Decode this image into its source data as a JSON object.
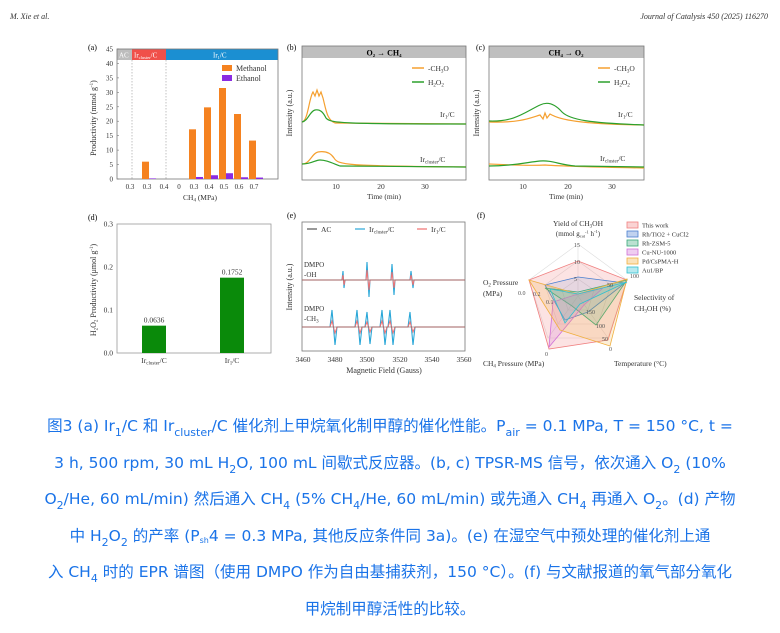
{
  "header": {
    "authors": "M. Xie et al.",
    "journal": "Journal of Catalysis 450 (2025) 116270"
  },
  "panels": {
    "a": {
      "label": "(a)",
      "group_ac": "AC",
      "group_cluster": "Ir",
      "group_cluster_sub": "cluster",
      "group_cluster_tail": "/C",
      "group_single": "Ir",
      "group_single_sub": "1",
      "group_single_tail": "/C"
    },
    "b": {
      "label": "(b)",
      "title": "O₂ → CH₄"
    },
    "c": {
      "label": "(c)",
      "title": "CH₄ → O₂"
    },
    "d": {
      "label": "(d)"
    },
    "e": {
      "label": "(e)"
    },
    "f": {
      "label": "(f)"
    }
  },
  "chart_data": [
    {
      "id": "a",
      "type": "bar",
      "title": "",
      "xlabel": "CH4 (MPa)",
      "ylabel": "Productivity (mmol g-1)",
      "ylim": [
        0,
        45
      ],
      "yticks": [
        0,
        5,
        10,
        15,
        20,
        25,
        30,
        35,
        40,
        45
      ],
      "groups": [
        "AC",
        "Ir_cluster/C",
        "Ir1/C"
      ],
      "categories": [
        "0.3",
        "0.3",
        "0.4",
        "0",
        "0.3",
        "0.4",
        "0.5",
        "0.6",
        "0.7"
      ],
      "series": [
        {
          "name": "Methanol",
          "color": "#f58220",
          "values": [
            0,
            6.0,
            0,
            0,
            17.2,
            24.8,
            31.5,
            22.5,
            13.3
          ]
        },
        {
          "name": "Ethanol",
          "color": "#8a2be2",
          "values": [
            0,
            0.2,
            0,
            0,
            0.7,
            1.3,
            2.0,
            0.6,
            0.5
          ]
        }
      ],
      "legend_position": "upper right"
    },
    {
      "id": "b",
      "type": "line",
      "title": "O2 → CH4",
      "xlabel": "Time (min)",
      "ylabel": "Intensity (a.u.)",
      "xticks": [
        10,
        20,
        30
      ],
      "xlim": [
        3,
        35
      ],
      "series": [
        {
          "name": "-CH3O",
          "color": "#f5a030"
        },
        {
          "name": "H2O2",
          "color": "#2ca02c"
        }
      ],
      "annotations": [
        "Ir1/C",
        "Ir_cluster/C"
      ]
    },
    {
      "id": "c",
      "type": "line",
      "title": "CH4 → O2",
      "xlabel": "Time (min)",
      "ylabel": "Intensity (a.u.)",
      "xticks": [
        10,
        20,
        30
      ],
      "xlim": [
        3,
        35
      ],
      "series": [
        {
          "name": "-CH3O",
          "color": "#f5a030"
        },
        {
          "name": "H2O2",
          "color": "#2ca02c"
        }
      ],
      "annotations": [
        "Ir1/C",
        "Ir_cluster/C"
      ]
    },
    {
      "id": "d",
      "type": "bar",
      "xlabel": "",
      "ylabel": "H2O2 Productivity (μmol g-1)",
      "ylim": [
        0,
        0.3
      ],
      "yticks": [
        "0.0",
        "0.1",
        "0.2",
        "0.3"
      ],
      "categories": [
        "Ir_cluster/C",
        "Ir1/C"
      ],
      "values": [
        0.0636,
        0.1752
      ],
      "labels": [
        "0.0636",
        "0.1752"
      ],
      "color": "#0a8a0a"
    },
    {
      "id": "e",
      "type": "line",
      "xlabel": "Magnetic Field (Gauss)",
      "ylabel": "Intensity (a.u.)",
      "xticks": [
        3460,
        3480,
        3500,
        3520,
        3540,
        3560
      ],
      "series": [
        {
          "name": "AC",
          "color": "#555555"
        },
        {
          "name": "Ir_cluster/C",
          "color": "#2aa7d8"
        },
        {
          "name": "Ir1/C",
          "color": "#f07070"
        }
      ],
      "annotations": [
        "DMPO -OH",
        "DMPO -CH3"
      ]
    },
    {
      "id": "f",
      "type": "radar",
      "axes": [
        "Yield of CH3OH (mmol gcat-1 h-1)",
        "Selectivity of CH3OH (%)",
        "Temperature (°C)",
        "CH4 Pressure (MPa)",
        "O2 Pressure (MPa)"
      ],
      "axis_ticks": {
        "yield": [
          "5",
          "10",
          "15"
        ],
        "selectivity": [
          "50",
          "100"
        ],
        "temperature": [
          "150",
          "100",
          "50",
          "0"
        ],
        "ch4_pressure": [
          "0"
        ],
        "o2_pressure": [
          "0.0",
          "0.1",
          "0.2"
        ]
      },
      "series": [
        {
          "name": "This work",
          "color": "#f08080"
        },
        {
          "name": "Rh/TiO2 + CuCl2",
          "color": "#4a7fd0"
        },
        {
          "name": "Rh-ZSM-5",
          "color": "#3aa87a"
        },
        {
          "name": "Cu-NU-1000",
          "color": "#d070d8"
        },
        {
          "name": "Pd/CsPMA-H",
          "color": "#f0b040"
        },
        {
          "name": "Au1/BP",
          "color": "#30c0d0"
        }
      ]
    }
  ],
  "caption": {
    "line1_a": "图3 (a) Ir",
    "line1_sub1": "1",
    "line1_b": "/C 和 Ir",
    "line1_sub2": "cluster",
    "line1_c": "/C 催化剂上甲烷氧化制甲醇的催化性能。P",
    "line1_sub3": "air",
    "line1_d": " = 0.1 MPa, T = 150 °C, t =",
    "line2_a": "3 h, 500 rpm, 30 mL H",
    "line2_sub1": "2",
    "line2_b": "O, 100 mL 间歇式反应器。(b, c) TPSR-MS 信号，依次通入 O",
    "line2_sub2": "2",
    "line2_c": " (10%",
    "line3_a": "O",
    "line3_sub1": "2",
    "line3_b": "/He, 60 mL/min) 然后通入 CH",
    "line3_sub2": "4",
    "line3_c": " (5% CH",
    "line3_sub3": "4",
    "line3_d": "/He, 60 mL/min) 或先通入 CH",
    "line3_sub4": "4",
    "line3_e": " 再通入 O",
    "line3_sub5": "2",
    "line3_f": "。(d) 产物",
    "line4_a": "中 H",
    "line4_sub1": "2",
    "line4_b": "O",
    "line4_sub2": "2",
    "line4_c": " 的产率 (P",
    "line4_sub3": "sh",
    "line4_d": "4 = 0.3 MPa, 其他反应条件同 3a)。(e) 在湿空气中预处理的催化剂上通",
    "line5_a": "入 CH",
    "line5_sub1": "4",
    "line5_b": " 时的 EPR 谱图（使用 DMPO 作为自由基捕获剂，150 °C）。(f) 与文献报道的氧气部分氧化",
    "line6": "甲烷制甲醇活性的比较。"
  }
}
